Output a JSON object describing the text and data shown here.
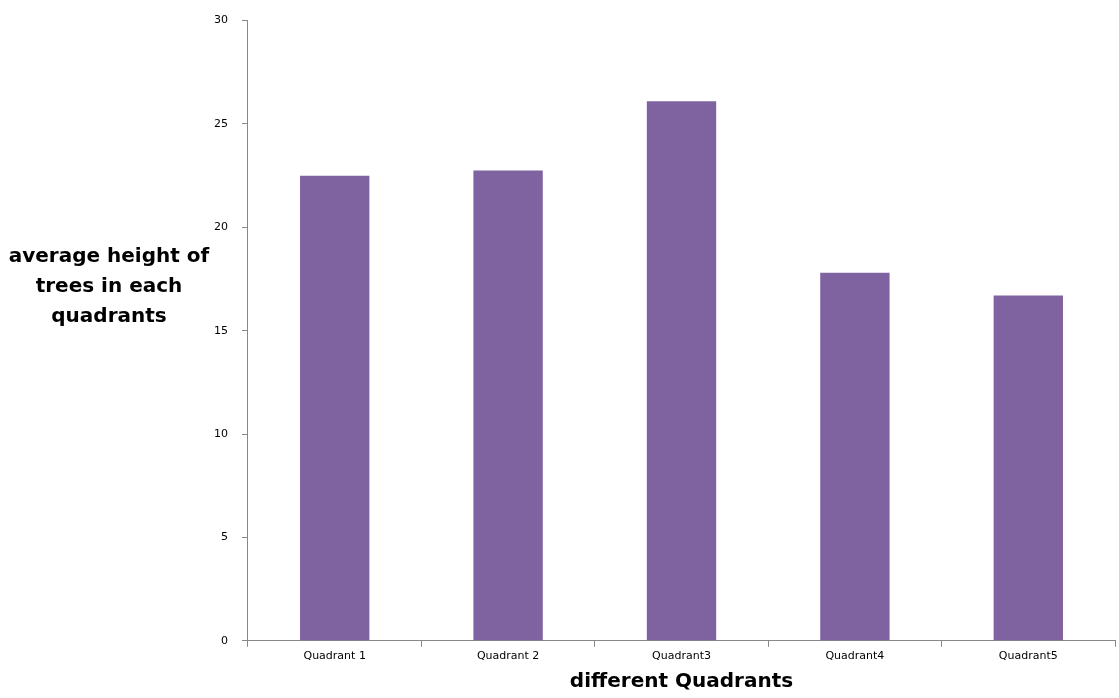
{
  "chart_data": {
    "type": "bar",
    "xlabel": "different Quadrants",
    "ylabel": "average height of trees in each quadrants",
    "categories": [
      "Quadrant 1",
      "Quadrant 2",
      "Quadrant3",
      "Quadrant4",
      "Quadrant5"
    ],
    "values": [
      22.5,
      22.75,
      26.1,
      17.8,
      16.7
    ],
    "color": "#7f63a1",
    "ylim": [
      0,
      30
    ],
    "yticks": [
      0,
      5,
      10,
      15,
      20,
      25,
      30
    ],
    "grid": false
  }
}
